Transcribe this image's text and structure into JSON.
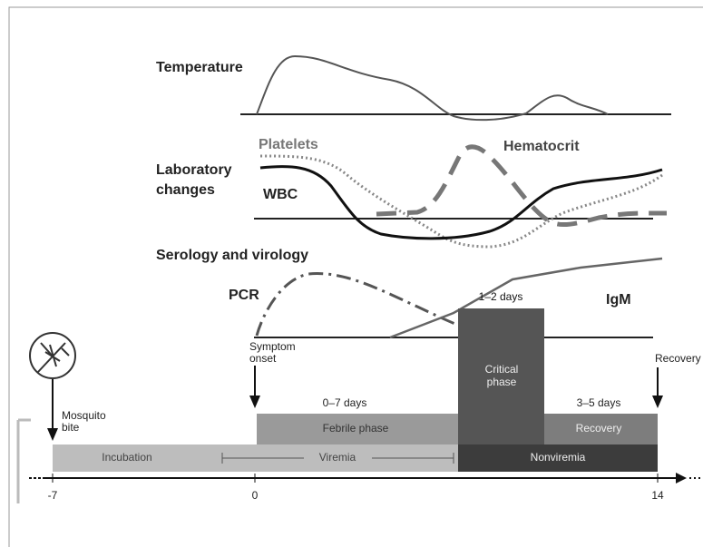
{
  "panels": {
    "temperature": "Temperature",
    "laboratory": [
      "Laboratory",
      "changes"
    ],
    "serology": "Serology and virology"
  },
  "curves": {
    "platelets": "Platelets",
    "hematocrit": "Hematocrit",
    "wbc": "WBC",
    "pcr": "PCR",
    "igm": "IgM"
  },
  "events": {
    "symptom_onset": [
      "Symptom",
      "onset"
    ],
    "mosquito_bite": [
      "Mosquito",
      "bite"
    ],
    "recovery": "Recovery"
  },
  "phases": {
    "critical_duration": "1–2 days",
    "critical": [
      "Critical",
      "phase"
    ],
    "febrile_duration": "0–7 days",
    "febrile": "Febrile phase",
    "recovery_duration": "3–5 days",
    "recovery": "Recovery",
    "incubation": "Incubation",
    "viremia": "Viremia",
    "nonviremia": "Nonviremia"
  },
  "axis": {
    "ticks": [
      "-7",
      "0",
      "14"
    ]
  }
}
